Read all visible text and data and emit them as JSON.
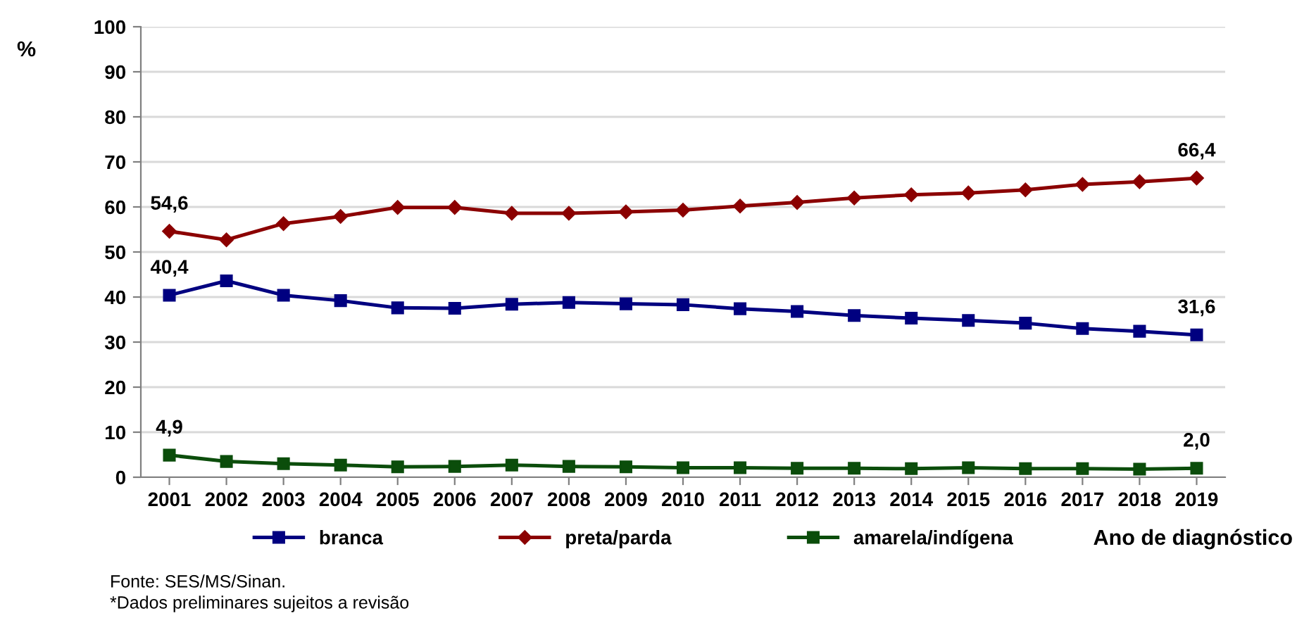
{
  "chart_data": {
    "type": "line",
    "ylabel": "%",
    "xlabel": "Ano de diagnóstico",
    "categories": [
      "2001",
      "2002",
      "2003",
      "2004",
      "2005",
      "2006",
      "2007",
      "2008",
      "2009",
      "2010",
      "2011",
      "2012",
      "2013",
      "2014",
      "2015",
      "2016",
      "2017",
      "2018",
      "2019"
    ],
    "series": [
      {
        "name": "branca",
        "color": "#000080",
        "marker": "square",
        "values": [
          40.4,
          43.6,
          40.4,
          39.2,
          37.6,
          37.5,
          38.4,
          38.8,
          38.5,
          38.3,
          37.4,
          36.8,
          35.9,
          35.3,
          34.8,
          34.2,
          33.0,
          32.4,
          31.6
        ]
      },
      {
        "name": "preta/parda",
        "color": "#8b0000",
        "marker": "diamond",
        "values": [
          54.6,
          52.7,
          56.3,
          57.9,
          59.9,
          59.9,
          58.6,
          58.6,
          58.9,
          59.3,
          60.2,
          61.0,
          62.0,
          62.7,
          63.1,
          63.8,
          65.0,
          65.6,
          66.4
        ]
      },
      {
        "name": "amarela/indígena",
        "color": "#0b4d0b",
        "marker": "square",
        "values": [
          4.9,
          3.5,
          3.0,
          2.7,
          2.3,
          2.4,
          2.7,
          2.4,
          2.3,
          2.1,
          2.1,
          2.0,
          2.0,
          1.9,
          2.1,
          1.9,
          1.9,
          1.8,
          2.0
        ]
      }
    ],
    "ylim": [
      0,
      100
    ],
    "yticks": [
      0,
      10,
      20,
      30,
      40,
      50,
      60,
      70,
      80,
      90,
      100
    ],
    "grid": "y",
    "legend": "bottom",
    "annotations": [
      {
        "text": "54,6",
        "x": "2001",
        "y": 54.6
      },
      {
        "text": "66,4",
        "x": "2019",
        "y": 66.4
      },
      {
        "text": "40,4",
        "x": "2001",
        "y": 40.4
      },
      {
        "text": "31,6",
        "x": "2019",
        "y": 31.6
      },
      {
        "text": "4,9",
        "x": "2001",
        "y": 4.9
      },
      {
        "text": "2,0",
        "x": "2019",
        "y": 2.0
      },
      "Fonte: SES/MS/Sinan.",
      "*Dados preliminares sujeitos a revisão"
    ]
  }
}
